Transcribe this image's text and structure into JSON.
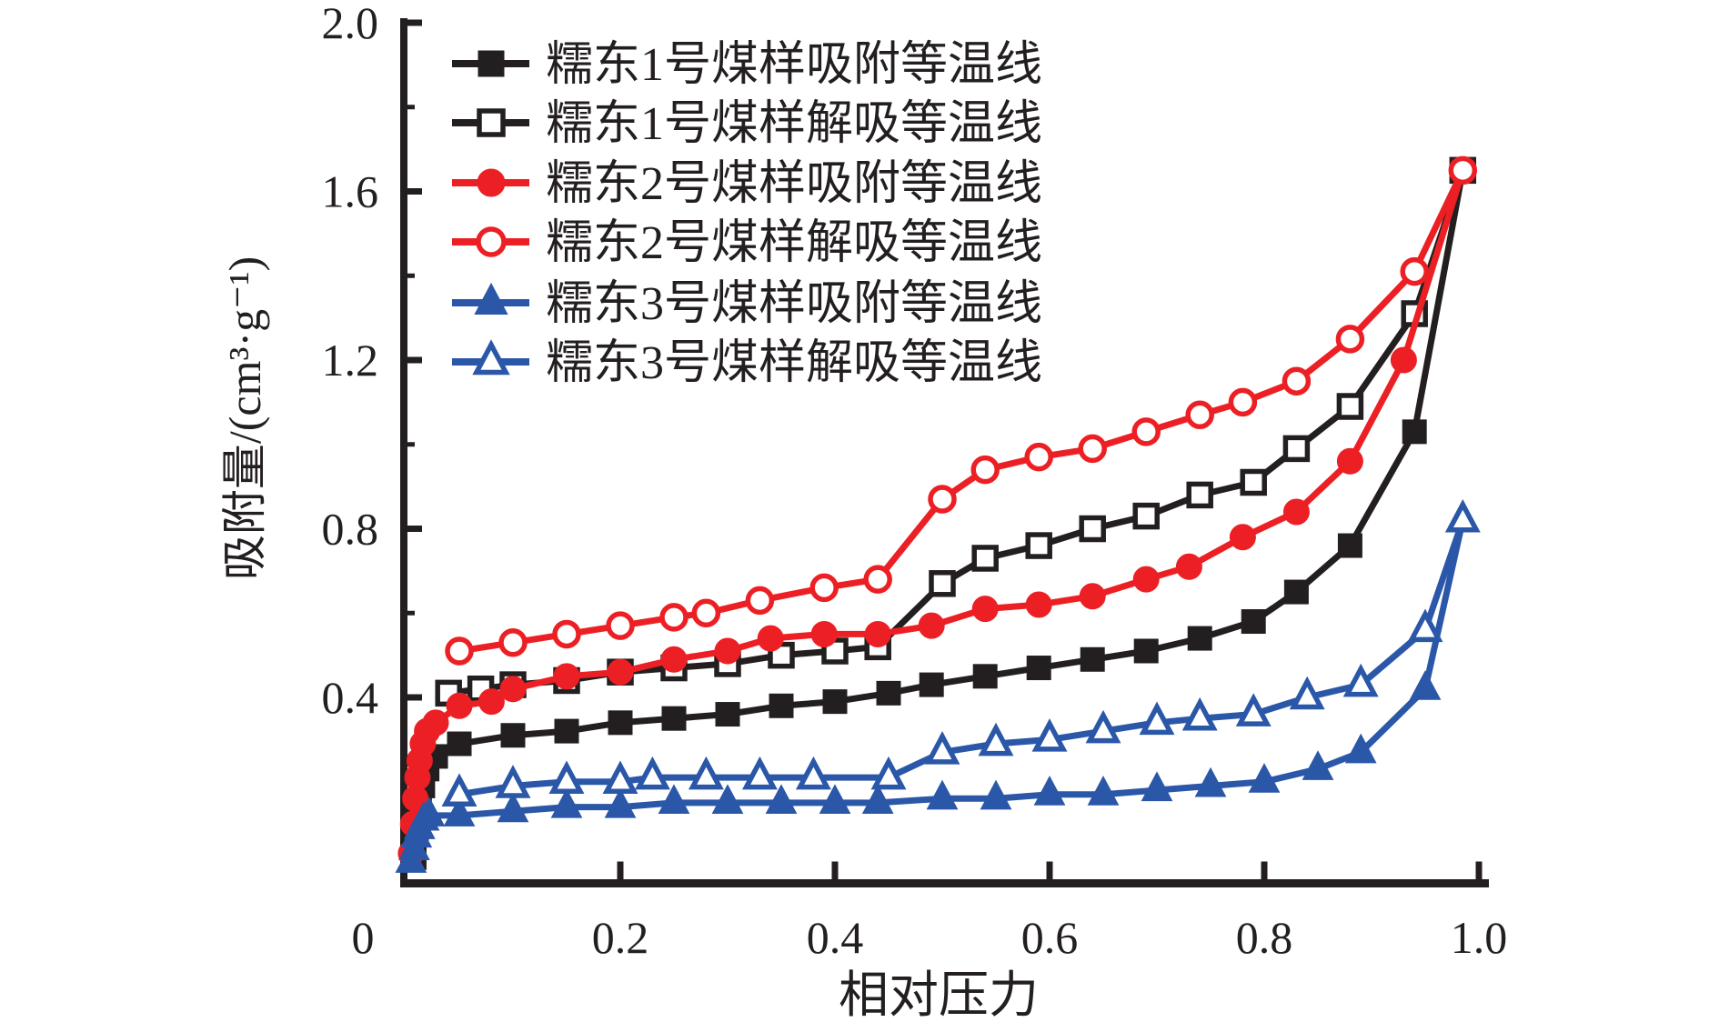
{
  "chart_data": {
    "type": "line",
    "title": "",
    "xlabel": "相对压力",
    "ylabel": "吸附量/(cm³·g⁻¹)",
    "xlim": [
      0,
      1.0
    ],
    "ylim": [
      0,
      2.0
    ],
    "grid": false,
    "legend_position": "top-left-inside",
    "x_tick_labels": [
      "0",
      "0.2",
      "0.4",
      "0.6",
      "0.8",
      "1.0"
    ],
    "x_tick_values": [
      0,
      0.2,
      0.4,
      0.6,
      0.8,
      1.0
    ],
    "y_tick_labels": [
      "0.4",
      "0.8",
      "1.2",
      "1.6",
      "2.0"
    ],
    "y_tick_values": [
      0.4,
      0.8,
      1.2,
      1.6,
      2.0
    ],
    "y_minor_tick_values": [
      0.2,
      0.6,
      1.0,
      1.4,
      1.8
    ],
    "colors": {
      "sample1": "#231f20",
      "sample2": "#ec2024",
      "sample3": "#2b57a8"
    },
    "series": [
      {
        "id": "noudong1-adsorption",
        "name": "糯东1号煤样吸附等温线",
        "color": "#231f20",
        "marker": "square",
        "marker_fill": "filled",
        "points": [
          [
            0.008,
            0.02
          ],
          [
            0.01,
            0.08
          ],
          [
            0.013,
            0.14
          ],
          [
            0.016,
            0.19
          ],
          [
            0.02,
            0.23
          ],
          [
            0.028,
            0.26
          ],
          [
            0.05,
            0.29
          ],
          [
            0.1,
            0.31
          ],
          [
            0.15,
            0.32
          ],
          [
            0.2,
            0.34
          ],
          [
            0.25,
            0.35
          ],
          [
            0.3,
            0.36
          ],
          [
            0.35,
            0.38
          ],
          [
            0.4,
            0.39
          ],
          [
            0.45,
            0.41
          ],
          [
            0.49,
            0.43
          ],
          [
            0.54,
            0.45
          ],
          [
            0.59,
            0.47
          ],
          [
            0.64,
            0.49
          ],
          [
            0.69,
            0.51
          ],
          [
            0.74,
            0.54
          ],
          [
            0.79,
            0.58
          ],
          [
            0.83,
            0.65
          ],
          [
            0.88,
            0.76
          ],
          [
            0.94,
            1.03
          ],
          [
            0.985,
            1.65
          ]
        ]
      },
      {
        "id": "noudong1-desorption",
        "name": "糯东1号煤样解吸等温线",
        "color": "#231f20",
        "marker": "square",
        "marker_fill": "open",
        "points": [
          [
            0.04,
            0.41
          ],
          [
            0.07,
            0.42
          ],
          [
            0.1,
            0.43
          ],
          [
            0.15,
            0.44
          ],
          [
            0.2,
            0.46
          ],
          [
            0.25,
            0.47
          ],
          [
            0.3,
            0.48
          ],
          [
            0.35,
            0.5
          ],
          [
            0.4,
            0.51
          ],
          [
            0.44,
            0.52
          ],
          [
            0.5,
            0.67
          ],
          [
            0.54,
            0.73
          ],
          [
            0.59,
            0.76
          ],
          [
            0.64,
            0.8
          ],
          [
            0.69,
            0.83
          ],
          [
            0.74,
            0.88
          ],
          [
            0.79,
            0.91
          ],
          [
            0.83,
            0.99
          ],
          [
            0.88,
            1.09
          ],
          [
            0.94,
            1.31
          ],
          [
            0.985,
            1.65
          ]
        ]
      },
      {
        "id": "noudong2-adsorption",
        "name": "糯东2号煤样吸附等温线",
        "color": "#ec2024",
        "marker": "circle",
        "marker_fill": "filled",
        "points": [
          [
            0.005,
            0.03
          ],
          [
            0.007,
            0.1
          ],
          [
            0.009,
            0.16
          ],
          [
            0.011,
            0.21
          ],
          [
            0.013,
            0.25
          ],
          [
            0.016,
            0.29
          ],
          [
            0.02,
            0.32
          ],
          [
            0.028,
            0.34
          ],
          [
            0.05,
            0.38
          ],
          [
            0.08,
            0.39
          ],
          [
            0.1,
            0.42
          ],
          [
            0.15,
            0.45
          ],
          [
            0.2,
            0.46
          ],
          [
            0.25,
            0.49
          ],
          [
            0.3,
            0.51
          ],
          [
            0.34,
            0.54
          ],
          [
            0.39,
            0.55
          ],
          [
            0.44,
            0.55
          ],
          [
            0.49,
            0.57
          ],
          [
            0.54,
            0.61
          ],
          [
            0.59,
            0.62
          ],
          [
            0.64,
            0.64
          ],
          [
            0.69,
            0.68
          ],
          [
            0.73,
            0.71
          ],
          [
            0.78,
            0.78
          ],
          [
            0.83,
            0.84
          ],
          [
            0.88,
            0.96
          ],
          [
            0.93,
            1.2
          ],
          [
            0.985,
            1.65
          ]
        ]
      },
      {
        "id": "noudong2-desorption",
        "name": "糯东2号煤样解吸等温线",
        "color": "#ec2024",
        "marker": "circle",
        "marker_fill": "open",
        "points": [
          [
            0.05,
            0.51
          ],
          [
            0.1,
            0.53
          ],
          [
            0.15,
            0.55
          ],
          [
            0.2,
            0.57
          ],
          [
            0.25,
            0.59
          ],
          [
            0.28,
            0.6
          ],
          [
            0.33,
            0.63
          ],
          [
            0.39,
            0.66
          ],
          [
            0.44,
            0.68
          ],
          [
            0.5,
            0.87
          ],
          [
            0.54,
            0.94
          ],
          [
            0.59,
            0.97
          ],
          [
            0.64,
            0.99
          ],
          [
            0.69,
            1.03
          ],
          [
            0.74,
            1.07
          ],
          [
            0.78,
            1.1
          ],
          [
            0.83,
            1.15
          ],
          [
            0.88,
            1.25
          ],
          [
            0.94,
            1.41
          ],
          [
            0.985,
            1.65
          ]
        ]
      },
      {
        "id": "noudong3-adsorption",
        "name": "糯东3号煤样吸附等温线",
        "color": "#2b57a8",
        "marker": "triangle",
        "marker_fill": "filled",
        "points": [
          [
            0.005,
            0.01
          ],
          [
            0.008,
            0.04
          ],
          [
            0.01,
            0.07
          ],
          [
            0.013,
            0.09
          ],
          [
            0.017,
            0.11
          ],
          [
            0.022,
            0.12
          ],
          [
            0.05,
            0.12
          ],
          [
            0.1,
            0.13
          ],
          [
            0.15,
            0.14
          ],
          [
            0.2,
            0.14
          ],
          [
            0.25,
            0.15
          ],
          [
            0.3,
            0.15
          ],
          [
            0.35,
            0.15
          ],
          [
            0.4,
            0.15
          ],
          [
            0.44,
            0.15
          ],
          [
            0.5,
            0.16
          ],
          [
            0.55,
            0.16
          ],
          [
            0.6,
            0.17
          ],
          [
            0.65,
            0.17
          ],
          [
            0.7,
            0.18
          ],
          [
            0.75,
            0.19
          ],
          [
            0.8,
            0.2
          ],
          [
            0.85,
            0.23
          ],
          [
            0.89,
            0.27
          ],
          [
            0.95,
            0.42
          ],
          [
            0.985,
            0.82
          ]
        ]
      },
      {
        "id": "noudong3-desorption",
        "name": "糯东3号煤样解吸等温线",
        "color": "#2b57a8",
        "marker": "triangle",
        "marker_fill": "open",
        "points": [
          [
            0.05,
            0.17
          ],
          [
            0.1,
            0.19
          ],
          [
            0.15,
            0.2
          ],
          [
            0.2,
            0.2
          ],
          [
            0.23,
            0.21
          ],
          [
            0.28,
            0.21
          ],
          [
            0.33,
            0.21
          ],
          [
            0.38,
            0.21
          ],
          [
            0.45,
            0.21
          ],
          [
            0.5,
            0.27
          ],
          [
            0.55,
            0.29
          ],
          [
            0.6,
            0.3
          ],
          [
            0.65,
            0.32
          ],
          [
            0.7,
            0.34
          ],
          [
            0.74,
            0.35
          ],
          [
            0.79,
            0.36
          ],
          [
            0.84,
            0.4
          ],
          [
            0.89,
            0.43
          ],
          [
            0.95,
            0.56
          ],
          [
            0.985,
            0.82
          ]
        ]
      }
    ]
  }
}
